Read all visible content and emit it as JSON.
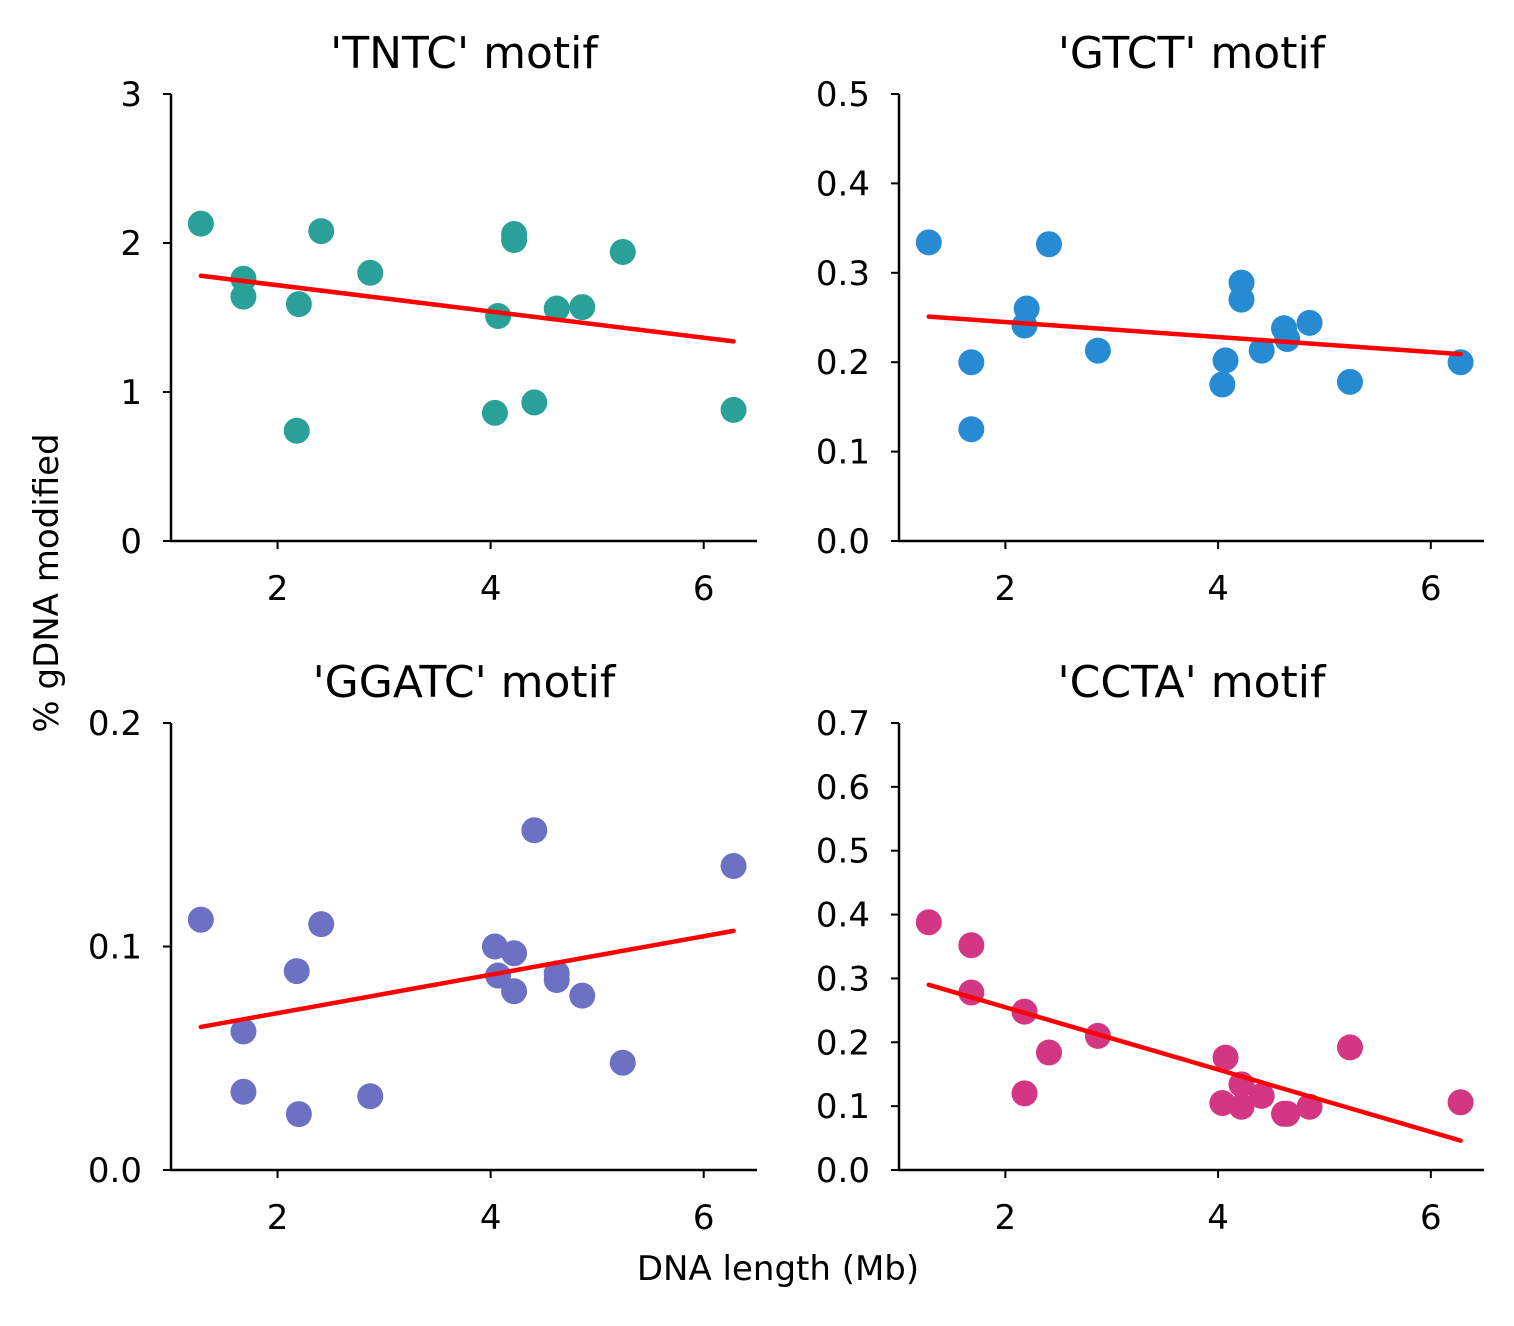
{
  "figure": {
    "xlabel": "DNA length (Mb)",
    "ylabel": "% gDNA modified"
  },
  "colors": {
    "teal": "#2aa198",
    "blue": "#268bd2",
    "purple": "#6c71c4",
    "magenta": "#d33682",
    "fit": "#ff0000"
  },
  "chart_data": [
    {
      "type": "scatter",
      "title": "'TNTC' motif",
      "color": "#2aa198",
      "xlim": [
        1.0,
        6.5
      ],
      "ylim": [
        0,
        3
      ],
      "xticks": [
        2,
        4,
        6
      ],
      "xtick_labels": [
        "2",
        "4",
        "6"
      ],
      "yticks": [
        0,
        1,
        2,
        3
      ],
      "ytick_labels": [
        "0",
        "1",
        "2",
        "3"
      ],
      "points": [
        {
          "x": 1.28,
          "y": 2.13
        },
        {
          "x": 1.68,
          "y": 1.76
        },
        {
          "x": 1.68,
          "y": 1.64
        },
        {
          "x": 2.2,
          "y": 1.59
        },
        {
          "x": 2.18,
          "y": 0.74
        },
        {
          "x": 2.41,
          "y": 2.08
        },
        {
          "x": 2.87,
          "y": 1.8
        },
        {
          "x": 4.04,
          "y": 0.86
        },
        {
          "x": 4.07,
          "y": 1.51
        },
        {
          "x": 4.22,
          "y": 2.06
        },
        {
          "x": 4.22,
          "y": 2.02
        },
        {
          "x": 4.41,
          "y": 0.93
        },
        {
          "x": 4.62,
          "y": 1.56
        },
        {
          "x": 4.86,
          "y": 1.57
        },
        {
          "x": 5.24,
          "y": 1.94
        },
        {
          "x": 6.28,
          "y": 0.88
        }
      ],
      "fit": {
        "x": [
          1.28,
          6.28
        ],
        "y": [
          1.78,
          1.34
        ]
      }
    },
    {
      "type": "scatter",
      "title": "'GTCT' motif",
      "color": "#268bd2",
      "xlim": [
        1.0,
        6.5
      ],
      "ylim": [
        0,
        0.5
      ],
      "xticks": [
        2,
        4,
        6
      ],
      "xtick_labels": [
        "2",
        "4",
        "6"
      ],
      "yticks": [
        0,
        0.1,
        0.2,
        0.3,
        0.4,
        0.5
      ],
      "ytick_labels": [
        "0.0",
        "0.1",
        "0.2",
        "0.3",
        "0.4",
        "0.5"
      ],
      "points": [
        {
          "x": 1.28,
          "y": 0.334
        },
        {
          "x": 1.68,
          "y": 0.2
        },
        {
          "x": 1.68,
          "y": 0.125
        },
        {
          "x": 2.2,
          "y": 0.26
        },
        {
          "x": 2.18,
          "y": 0.241
        },
        {
          "x": 2.41,
          "y": 0.332
        },
        {
          "x": 2.87,
          "y": 0.213
        },
        {
          "x": 4.04,
          "y": 0.175
        },
        {
          "x": 4.07,
          "y": 0.202
        },
        {
          "x": 4.22,
          "y": 0.289
        },
        {
          "x": 4.22,
          "y": 0.27
        },
        {
          "x": 4.41,
          "y": 0.213
        },
        {
          "x": 4.62,
          "y": 0.238
        },
        {
          "x": 4.65,
          "y": 0.226
        },
        {
          "x": 4.86,
          "y": 0.244
        },
        {
          "x": 5.24,
          "y": 0.178
        },
        {
          "x": 6.28,
          "y": 0.2
        }
      ],
      "fit": {
        "x": [
          1.28,
          6.28
        ],
        "y": [
          0.251,
          0.209
        ]
      }
    },
    {
      "type": "scatter",
      "title": "'GGATC' motif",
      "color": "#6c71c4",
      "xlim": [
        1.0,
        6.5
      ],
      "ylim": [
        0,
        0.2
      ],
      "xticks": [
        2,
        4,
        6
      ],
      "xtick_labels": [
        "2",
        "4",
        "6"
      ],
      "yticks": [
        0,
        0.1,
        0.2
      ],
      "ytick_labels": [
        "0.0",
        "0.1",
        "0.2"
      ],
      "points": [
        {
          "x": 1.28,
          "y": 0.112
        },
        {
          "x": 1.68,
          "y": 0.062
        },
        {
          "x": 1.68,
          "y": 0.035
        },
        {
          "x": 2.18,
          "y": 0.089
        },
        {
          "x": 2.2,
          "y": 0.025
        },
        {
          "x": 2.41,
          "y": 0.11
        },
        {
          "x": 2.87,
          "y": 0.033
        },
        {
          "x": 4.04,
          "y": 0.1
        },
        {
          "x": 4.07,
          "y": 0.087
        },
        {
          "x": 4.22,
          "y": 0.097
        },
        {
          "x": 4.22,
          "y": 0.08
        },
        {
          "x": 4.41,
          "y": 0.152
        },
        {
          "x": 4.62,
          "y": 0.088
        },
        {
          "x": 4.62,
          "y": 0.085
        },
        {
          "x": 4.86,
          "y": 0.078
        },
        {
          "x": 5.24,
          "y": 0.048
        },
        {
          "x": 6.28,
          "y": 0.136
        }
      ],
      "fit": {
        "x": [
          1.28,
          6.28
        ],
        "y": [
          0.064,
          0.107
        ]
      }
    },
    {
      "type": "scatter",
      "title": "'CCTA' motif",
      "color": "#d33682",
      "xlim": [
        1.0,
        6.5
      ],
      "ylim": [
        0,
        0.7
      ],
      "xticks": [
        2,
        4,
        6
      ],
      "xtick_labels": [
        "2",
        "4",
        "6"
      ],
      "yticks": [
        0,
        0.1,
        0.2,
        0.3,
        0.4,
        0.5,
        0.6,
        0.7
      ],
      "ytick_labels": [
        "0.0",
        "0.1",
        "0.2",
        "0.3",
        "0.4",
        "0.5",
        "0.6",
        "0.7"
      ],
      "points": [
        {
          "x": 1.28,
          "y": 0.388
        },
        {
          "x": 1.68,
          "y": 0.352
        },
        {
          "x": 1.68,
          "y": 0.278
        },
        {
          "x": 2.18,
          "y": 0.248
        },
        {
          "x": 2.18,
          "y": 0.12
        },
        {
          "x": 2.41,
          "y": 0.184
        },
        {
          "x": 2.87,
          "y": 0.21
        },
        {
          "x": 4.04,
          "y": 0.105
        },
        {
          "x": 4.07,
          "y": 0.176
        },
        {
          "x": 4.22,
          "y": 0.134
        },
        {
          "x": 4.22,
          "y": 0.099
        },
        {
          "x": 4.41,
          "y": 0.116
        },
        {
          "x": 4.62,
          "y": 0.088
        },
        {
          "x": 4.65,
          "y": 0.088
        },
        {
          "x": 4.86,
          "y": 0.099
        },
        {
          "x": 5.24,
          "y": 0.192
        },
        {
          "x": 6.28,
          "y": 0.106
        }
      ],
      "fit": {
        "x": [
          1.28,
          6.28
        ],
        "y": [
          0.29,
          0.046
        ]
      }
    }
  ]
}
